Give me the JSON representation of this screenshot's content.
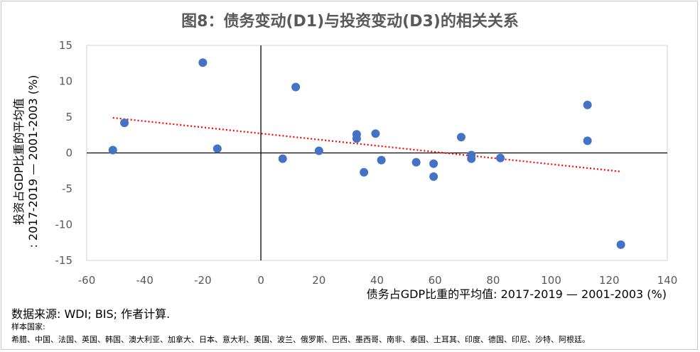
{
  "chart_data": {
    "type": "scatter",
    "title": "图8：债务变动(D1)与投资变动(D3)的相关关系",
    "xlabel": "债务占GDP比重的平均值: 2017-2019 — 2001-2003 (%)",
    "ylabel_line1": "投资占GDP比重的平均值",
    "ylabel_line2": ": 2017-2019 — 2001-2003 (%)",
    "xlim": [
      -60,
      140
    ],
    "ylim": [
      -15,
      15
    ],
    "x_ticks": [
      -60,
      -40,
      -20,
      0,
      20,
      40,
      60,
      80,
      100,
      120,
      140
    ],
    "y_ticks": [
      -15,
      -10,
      -5,
      0,
      5,
      10,
      15
    ],
    "grid": false,
    "point_color": "#4472C4",
    "trendline_color": "#FF0000",
    "trendline": {
      "x": [
        -51,
        124
      ],
      "y": [
        4.9,
        -2.6
      ]
    },
    "points": [
      {
        "x": -51,
        "y": 0.4
      },
      {
        "x": -47,
        "y": 4.2
      },
      {
        "x": -20,
        "y": 12.6
      },
      {
        "x": -15,
        "y": 0.6
      },
      {
        "x": 7.5,
        "y": -0.8
      },
      {
        "x": 12,
        "y": 9.2
      },
      {
        "x": 20,
        "y": 0.3
      },
      {
        "x": 33,
        "y": 2.6
      },
      {
        "x": 33,
        "y": 2.0
      },
      {
        "x": 35.5,
        "y": -2.7
      },
      {
        "x": 39.5,
        "y": 2.7
      },
      {
        "x": 41.5,
        "y": -1.0
      },
      {
        "x": 53.5,
        "y": -1.3
      },
      {
        "x": 59.5,
        "y": -1.5
      },
      {
        "x": 59.5,
        "y": -3.3
      },
      {
        "x": 69,
        "y": 2.2
      },
      {
        "x": 72.5,
        "y": -0.3
      },
      {
        "x": 72.5,
        "y": -0.8
      },
      {
        "x": 82.5,
        "y": -0.7
      },
      {
        "x": 112.5,
        "y": 6.7
      },
      {
        "x": 112.5,
        "y": 1.7
      },
      {
        "x": 124,
        "y": -12.8
      }
    ]
  },
  "source": "数据来源: WDI; BIS; 作者计算.",
  "sample_label": "样本国家:",
  "sample_countries": "希腊、中国、法国、英国、韩国、澳大利亚、加拿大、日本、意大利、美国、波兰、俄罗斯、巴西、墨西哥、南非、泰国、土耳其、印度、德国、印尼、沙特、阿根廷。"
}
